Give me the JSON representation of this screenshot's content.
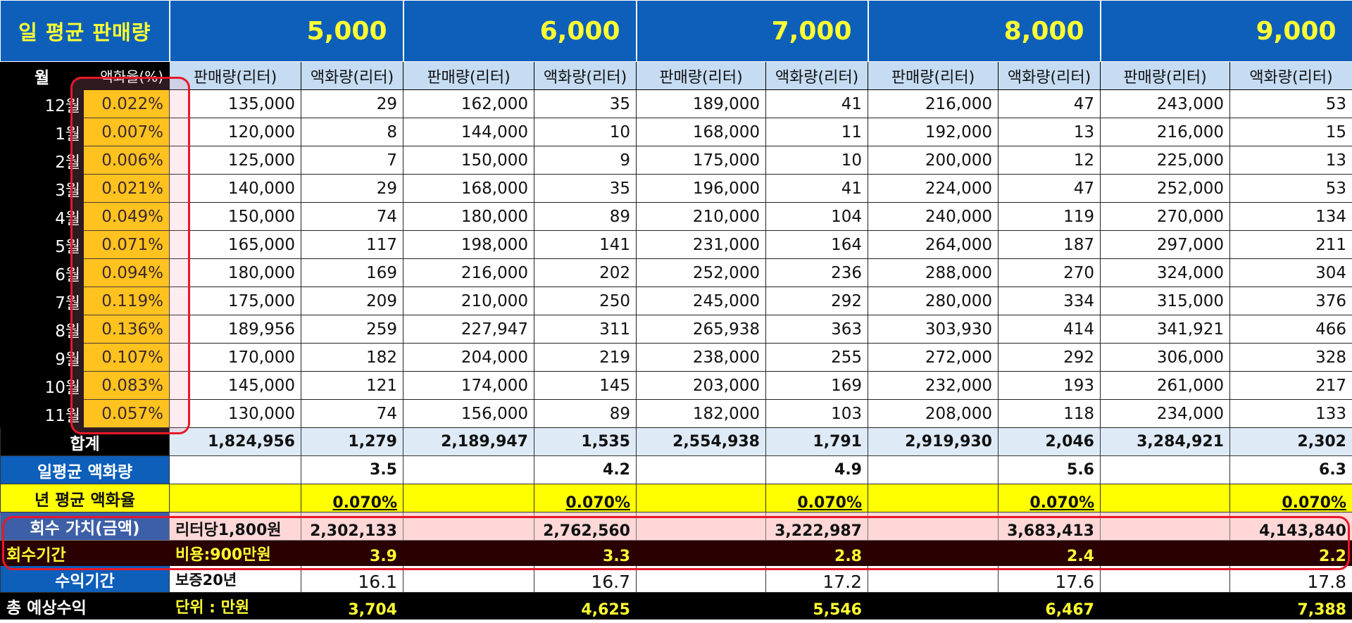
{
  "header": {
    "title": "일 평균 판매량",
    "prices": [
      "5,000",
      "6,000",
      "7,000",
      "8,000",
      "9,000"
    ]
  },
  "columns": {
    "month": "월",
    "rate": "액화율(%)",
    "sales": "판매량(리터)",
    "liquid": "액화량(리터)"
  },
  "months": [
    {
      "month": "12월",
      "rate": "0.022%",
      "values": [
        "135,000",
        "29",
        "162,000",
        "35",
        "189,000",
        "41",
        "216,000",
        "47",
        "243,000",
        "53"
      ]
    },
    {
      "month": "1월",
      "rate": "0.007%",
      "values": [
        "120,000",
        "8",
        "144,000",
        "10",
        "168,000",
        "11",
        "192,000",
        "13",
        "216,000",
        "15"
      ]
    },
    {
      "month": "2월",
      "rate": "0.006%",
      "values": [
        "125,000",
        "7",
        "150,000",
        "9",
        "175,000",
        "10",
        "200,000",
        "12",
        "225,000",
        "13"
      ]
    },
    {
      "month": "3월",
      "rate": "0.021%",
      "values": [
        "140,000",
        "29",
        "168,000",
        "35",
        "196,000",
        "41",
        "224,000",
        "47",
        "252,000",
        "53"
      ]
    },
    {
      "month": "4월",
      "rate": "0.049%",
      "values": [
        "150,000",
        "74",
        "180,000",
        "89",
        "210,000",
        "104",
        "240,000",
        "119",
        "270,000",
        "134"
      ]
    },
    {
      "month": "5월",
      "rate": "0.071%",
      "values": [
        "165,000",
        "117",
        "198,000",
        "141",
        "231,000",
        "164",
        "264,000",
        "187",
        "297,000",
        "211"
      ]
    },
    {
      "month": "6월",
      "rate": "0.094%",
      "values": [
        "180,000",
        "169",
        "216,000",
        "202",
        "252,000",
        "236",
        "288,000",
        "270",
        "324,000",
        "304"
      ]
    },
    {
      "month": "7월",
      "rate": "0.119%",
      "values": [
        "175,000",
        "209",
        "210,000",
        "250",
        "245,000",
        "292",
        "280,000",
        "334",
        "315,000",
        "376"
      ]
    },
    {
      "month": "8월",
      "rate": "0.136%",
      "values": [
        "189,956",
        "259",
        "227,947",
        "311",
        "265,938",
        "363",
        "303,930",
        "414",
        "341,921",
        "466"
      ]
    },
    {
      "month": "9월",
      "rate": "0.107%",
      "values": [
        "170,000",
        "182",
        "204,000",
        "219",
        "238,000",
        "255",
        "272,000",
        "292",
        "306,000",
        "328"
      ]
    },
    {
      "month": "10월",
      "rate": "0.083%",
      "values": [
        "145,000",
        "121",
        "174,000",
        "145",
        "203,000",
        "169",
        "232,000",
        "193",
        "261,000",
        "217"
      ]
    },
    {
      "month": "11월",
      "rate": "0.057%",
      "values": [
        "130,000",
        "74",
        "156,000",
        "89",
        "182,000",
        "103",
        "208,000",
        "118",
        "234,000",
        "133"
      ]
    }
  ],
  "total": {
    "label": "합계",
    "values": [
      "1,824,956",
      "1,279",
      "2,189,947",
      "1,535",
      "2,554,938",
      "1,791",
      "2,919,930",
      "2,046",
      "3,284,921",
      "2,302"
    ]
  },
  "daily_avg_liquid": {
    "label": "일평균 액화량",
    "values": [
      "3.5",
      "4.2",
      "4.9",
      "5.6",
      "6.3"
    ]
  },
  "yearly_avg_rate": {
    "label": "년 평균 액화율",
    "values": [
      "0.070%",
      "0.070%",
      "0.070%",
      "0.070%",
      "0.070%"
    ]
  },
  "recovery_value": {
    "label": "회수 가치(금액)",
    "note": "리터당1,800원",
    "values": [
      "2,302,133",
      "2,762,560",
      "3,222,987",
      "3,683,413",
      "4,143,840"
    ]
  },
  "recovery_period": {
    "label": "회수기간",
    "note": "비용:900만원",
    "values": [
      "3.9",
      "3.3",
      "2.8",
      "2.4",
      "2.2"
    ]
  },
  "profit_period": {
    "label": "수익기간",
    "note": "보증20년",
    "values": [
      "16.1",
      "16.7",
      "17.2",
      "17.6",
      "17.8"
    ]
  },
  "total_profit": {
    "label": "총 예상수익",
    "note": "단위 : 만원",
    "values": [
      "3,704",
      "4,625",
      "5,546",
      "6,467",
      "7,388"
    ]
  },
  "colors": {
    "header_blue": "#0d5fba",
    "title_yellow": "#ffff33",
    "rate_gold": "#ffcc00",
    "highlight_red": "#e8182a"
  }
}
